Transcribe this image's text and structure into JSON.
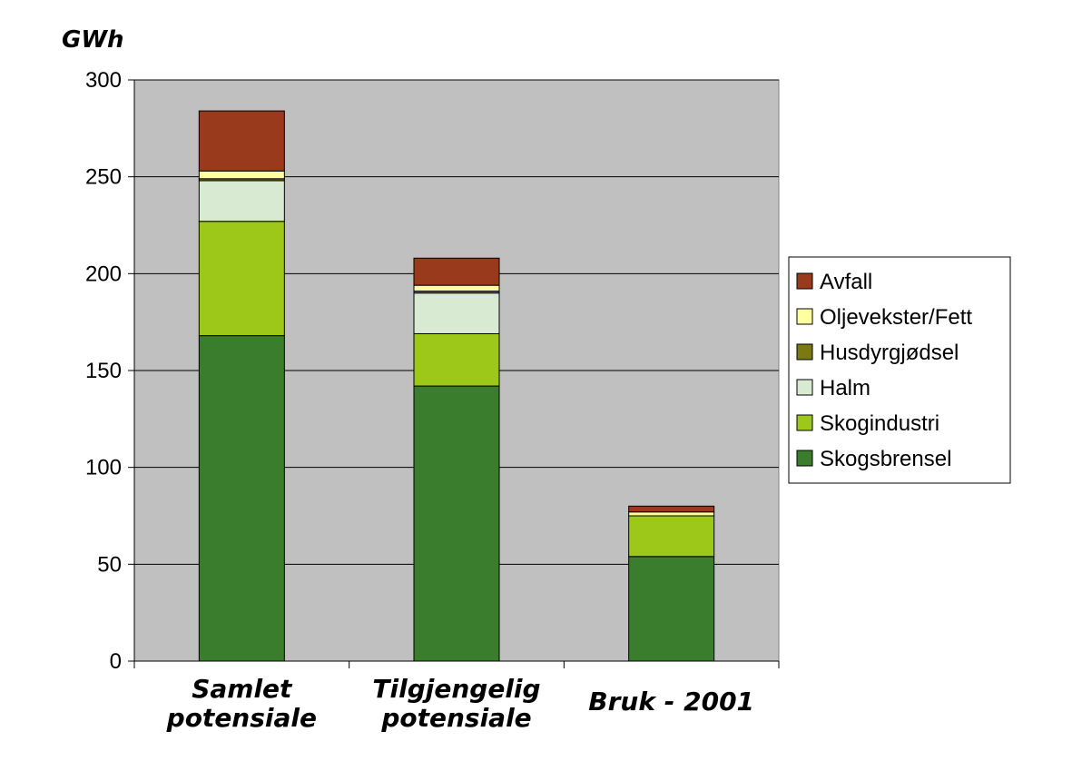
{
  "chart_data": {
    "type": "bar",
    "stacked": true,
    "ylabel": "GWh",
    "ylim": [
      0,
      300
    ],
    "yticks": [
      0,
      50,
      100,
      150,
      200,
      250,
      300
    ],
    "grid": true,
    "legend_position": "right",
    "plot_background": "#c0c0c0",
    "categories": [
      [
        "Samlet",
        "potensiale"
      ],
      [
        "Tilgjengelig",
        "potensiale"
      ],
      [
        "Bruk - 2001"
      ]
    ],
    "series": [
      {
        "name": "Skogsbrensel",
        "color": "#3a7d2c",
        "values": [
          168,
          142,
          54
        ]
      },
      {
        "name": "Skogindustri",
        "color": "#9dc819",
        "values": [
          59,
          27,
          21
        ]
      },
      {
        "name": "Halm",
        "color": "#d8ead2",
        "values": [
          21,
          21,
          0
        ]
      },
      {
        "name": "Husdyrgjødsel",
        "color": "#7a7a10",
        "values": [
          1,
          1,
          0
        ]
      },
      {
        "name": "Oljevekster/Fett",
        "color": "#ffff9f",
        "values": [
          4,
          3,
          2
        ]
      },
      {
        "name": "Avfall",
        "color": "#9a3a1c",
        "values": [
          31,
          14,
          3
        ]
      }
    ]
  }
}
